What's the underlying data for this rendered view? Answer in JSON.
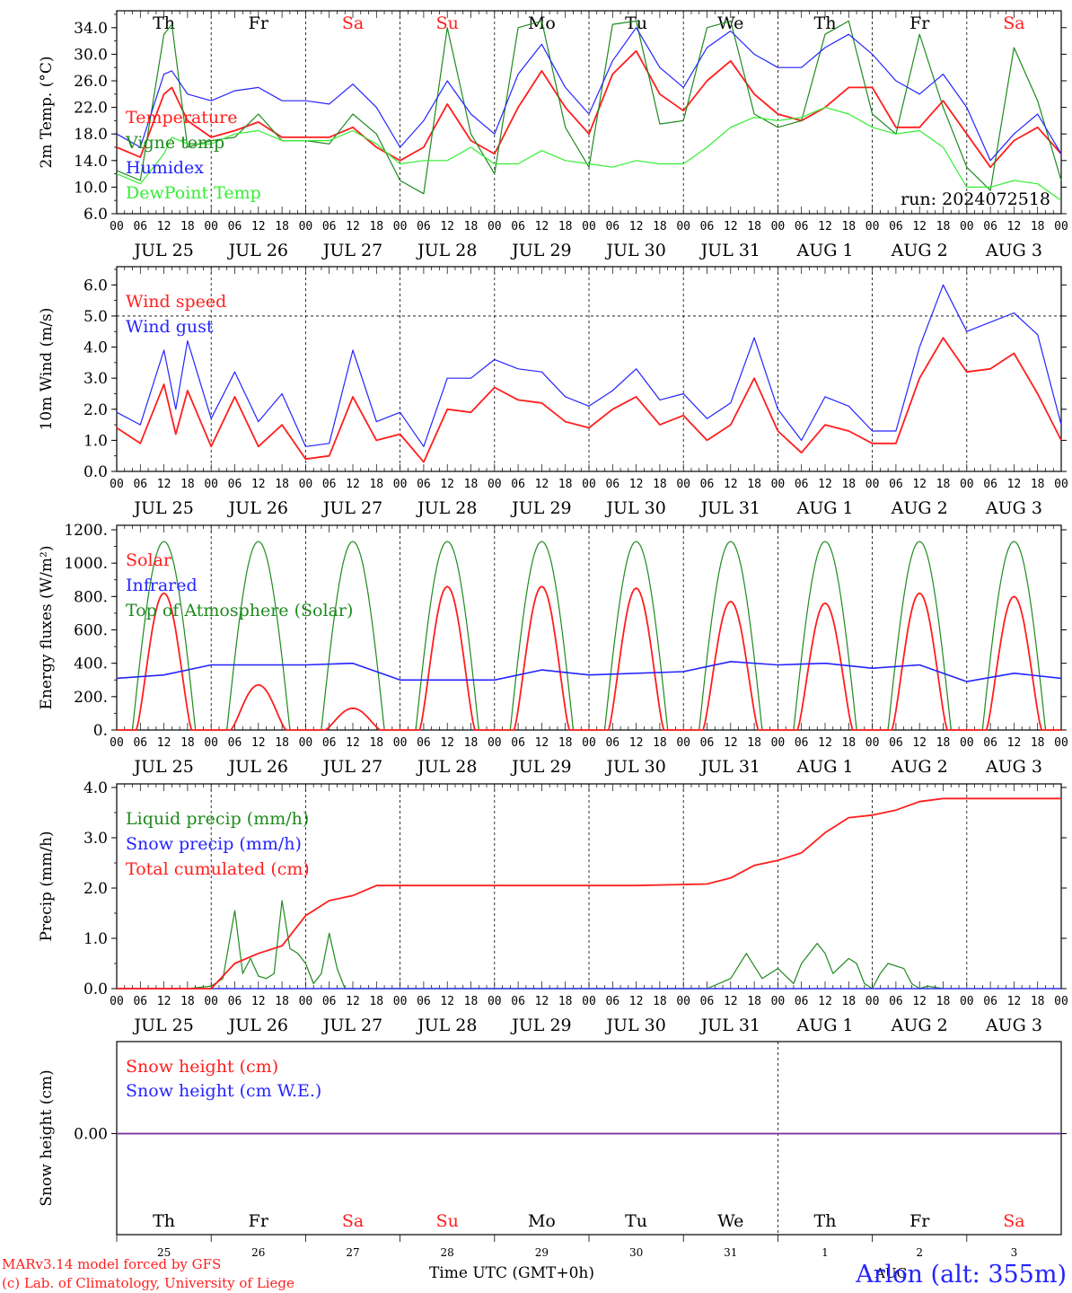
{
  "colors": {
    "red": "#ff1e1e",
    "blue": "#2424ff",
    "green": "#1f8a1f",
    "lightgreen": "#33ee33",
    "black": "#000000",
    "purple": "#7a2a9a"
  },
  "days": {
    "weekday_labels": [
      "Th",
      "Fr",
      "Sa",
      "Su",
      "Mo",
      "Tu",
      "We",
      "Th",
      "Fr",
      "Sa"
    ],
    "weekend_flags": [
      false,
      false,
      true,
      true,
      false,
      false,
      false,
      false,
      false,
      true
    ],
    "date_labels": [
      "JUL 25",
      "JUL 26",
      "JUL 27",
      "JUL 28",
      "JUL 29",
      "JUL 30",
      "JUL 31",
      "AUG  1",
      "AUG  2",
      "AUG  3"
    ],
    "hour_labels": [
      "00",
      "06",
      "12",
      "18"
    ],
    "final_hour_label": "00",
    "day_numbers": [
      "25",
      "26",
      "27",
      "28",
      "29",
      "30",
      "31",
      "1",
      "2",
      "3"
    ],
    "month_tag": "AUG"
  },
  "footer": {
    "model_line": "MARv3.14 model forced by GFS",
    "lab_line": "(c) Lab. of Climatology, University of Liege",
    "time_axis": "Time UTC (GMT+0h)",
    "station": "Arlon (alt: 355m)"
  },
  "chart_data": [
    {
      "type": "line",
      "title": "",
      "ylabel": "2m Temp. (oC)",
      "ylim": [
        6,
        36
      ],
      "yticks": [
        "6.0",
        "10.0",
        "14.0",
        "18.0",
        "22.0",
        "26.0",
        "30.0",
        "34.0"
      ],
      "run_label": "run: 2024072518",
      "x_unit": "hours since 2024-07-25 00 UTC",
      "xlim": [
        0,
        240
      ],
      "series": [
        {
          "name": "Temperature",
          "color": "red",
          "x": [
            0,
            6,
            12,
            14,
            18,
            24,
            30,
            36,
            42,
            48,
            54,
            60,
            66,
            72,
            78,
            84,
            90,
            96,
            102,
            108,
            114,
            120,
            126,
            132,
            138,
            144,
            150,
            156,
            162,
            168,
            174,
            180,
            186,
            192,
            198,
            204,
            210,
            216,
            222,
            228,
            234,
            240
          ],
          "y": [
            16,
            14.5,
            24,
            25,
            20,
            17.5,
            18.5,
            19.8,
            17.5,
            17.5,
            17.5,
            19,
            16,
            14,
            16,
            22.5,
            17,
            15,
            22,
            27.5,
            22,
            18,
            27,
            30.5,
            24,
            21.5,
            26,
            29,
            24,
            21,
            20,
            22,
            25,
            25,
            19,
            19,
            23,
            18,
            13,
            17,
            19,
            15
          ]
        },
        {
          "name": "Vigne temp",
          "color": "green",
          "x": [
            0,
            6,
            12,
            14,
            18,
            24,
            30,
            36,
            42,
            48,
            54,
            60,
            66,
            72,
            78,
            84,
            90,
            96,
            102,
            108,
            114,
            120,
            126,
            132,
            138,
            144,
            150,
            156,
            162,
            168,
            174,
            180,
            186,
            192,
            198,
            204,
            210,
            216,
            222,
            228,
            234,
            240
          ],
          "y": [
            12.5,
            11,
            33,
            34.5,
            16,
            17,
            17.5,
            21,
            17,
            17,
            16.5,
            21,
            18,
            11,
            9,
            34,
            18,
            12,
            34,
            35,
            19,
            13,
            34.5,
            35,
            19.5,
            20,
            34,
            35,
            21,
            19,
            20,
            33,
            35,
            21,
            18,
            33,
            22,
            13,
            9.5,
            31,
            23,
            11
          ]
        },
        {
          "name": "Humidex",
          "color": "blue",
          "x": [
            0,
            6,
            12,
            14,
            18,
            24,
            30,
            36,
            42,
            48,
            54,
            60,
            66,
            72,
            78,
            84,
            90,
            96,
            102,
            108,
            114,
            120,
            126,
            132,
            138,
            144,
            150,
            156,
            162,
            168,
            174,
            180,
            186,
            192,
            198,
            204,
            210,
            216,
            222,
            228,
            234,
            240
          ],
          "y": [
            18,
            16,
            27,
            27.5,
            24,
            23,
            24.5,
            25,
            23,
            23,
            22.5,
            25.5,
            22,
            16,
            20,
            26,
            21,
            18,
            27,
            31.5,
            25,
            21,
            29,
            34,
            28,
            25,
            31,
            33.5,
            30,
            28,
            28,
            31,
            33,
            30,
            26,
            24,
            27,
            22,
            14,
            18,
            21,
            15
          ]
        },
        {
          "name": "DewPoint Temp",
          "color": "lightgreen",
          "x": [
            0,
            6,
            12,
            14,
            18,
            24,
            30,
            36,
            42,
            48,
            54,
            60,
            66,
            72,
            78,
            84,
            90,
            96,
            102,
            108,
            114,
            120,
            126,
            132,
            138,
            144,
            150,
            156,
            162,
            168,
            174,
            180,
            186,
            192,
            198,
            204,
            210,
            216,
            222,
            228,
            234,
            240
          ],
          "y": [
            12,
            10.5,
            15,
            17.5,
            16.5,
            16.5,
            18,
            18.5,
            17,
            17,
            17,
            18.5,
            16.5,
            13.5,
            14,
            14,
            16,
            13.5,
            13.5,
            15.5,
            14,
            13.5,
            13,
            14,
            13.5,
            13.5,
            16,
            19,
            20.5,
            20,
            20.5,
            22,
            21,
            19,
            18,
            18.5,
            16,
            10,
            10,
            11,
            10.5,
            8
          ]
        }
      ]
    },
    {
      "type": "line",
      "title": "",
      "ylabel": "10m Wind (m/s)",
      "ylim": [
        0,
        6.5
      ],
      "yticks": [
        "0.0",
        "1.0",
        "2.0",
        "3.0",
        "4.0",
        "5.0",
        "6.0"
      ],
      "reference_line": 5.0,
      "x_unit": "hours since 2024-07-25 00 UTC",
      "xlim": [
        0,
        240
      ],
      "series": [
        {
          "name": "Wind speed",
          "color": "red",
          "x": [
            0,
            6,
            12,
            15,
            18,
            24,
            30,
            36,
            42,
            48,
            54,
            60,
            66,
            72,
            78,
            84,
            90,
            96,
            102,
            108,
            114,
            120,
            126,
            132,
            138,
            144,
            150,
            156,
            162,
            168,
            174,
            180,
            186,
            192,
            198,
            204,
            210,
            216,
            222,
            228,
            234,
            240
          ],
          "y": [
            1.4,
            0.9,
            2.8,
            1.2,
            2.6,
            0.8,
            2.4,
            0.8,
            1.5,
            0.4,
            0.5,
            2.4,
            1.0,
            1.2,
            0.3,
            2.0,
            1.9,
            2.7,
            2.3,
            2.2,
            1.6,
            1.4,
            2.0,
            2.4,
            1.5,
            1.8,
            1.0,
            1.5,
            3.0,
            1.3,
            0.6,
            1.5,
            1.3,
            0.9,
            0.9,
            3.0,
            4.3,
            3.2,
            3.3,
            3.8,
            2.5,
            1.0
          ]
        },
        {
          "name": "Wind gust",
          "color": "blue",
          "x": [
            0,
            6,
            12,
            15,
            18,
            24,
            30,
            36,
            42,
            48,
            54,
            60,
            66,
            72,
            78,
            84,
            90,
            96,
            102,
            108,
            114,
            120,
            126,
            132,
            138,
            144,
            150,
            156,
            162,
            168,
            174,
            180,
            186,
            192,
            198,
            204,
            210,
            216,
            222,
            228,
            234,
            240
          ],
          "y": [
            1.9,
            1.5,
            3.9,
            2.0,
            4.2,
            1.7,
            3.2,
            1.6,
            2.5,
            0.8,
            0.9,
            3.9,
            1.6,
            1.9,
            0.8,
            3.0,
            3.0,
            3.6,
            3.3,
            3.2,
            2.4,
            2.1,
            2.6,
            3.3,
            2.3,
            2.5,
            1.7,
            2.2,
            4.3,
            2.0,
            1.0,
            2.4,
            2.1,
            1.3,
            1.3,
            4.0,
            6.0,
            4.5,
            4.8,
            5.1,
            4.4,
            1.5
          ]
        }
      ]
    },
    {
      "type": "line",
      "title": "",
      "ylabel": "Energy fluxes (W/m2)",
      "ylim": [
        0,
        1200
      ],
      "yticks": [
        "0.",
        "200.",
        "400.",
        "600.",
        "800.",
        "1000.",
        "1200."
      ],
      "x_unit": "hours since 2024-07-25 00 UTC",
      "xlim": [
        0,
        240
      ],
      "solar_peaks": [
        820,
        270,
        130,
        860,
        860,
        850,
        770,
        760,
        820,
        800
      ],
      "toa_peak": 1130,
      "series": [
        {
          "name": "Solar",
          "color": "red"
        },
        {
          "name": "Infrared",
          "color": "blue",
          "x": [
            0,
            12,
            24,
            48,
            60,
            72,
            96,
            108,
            120,
            144,
            156,
            168,
            180,
            192,
            204,
            216,
            228,
            240
          ],
          "y": [
            310,
            330,
            390,
            390,
            400,
            300,
            300,
            360,
            330,
            350,
            410,
            390,
            400,
            370,
            390,
            290,
            340,
            310
          ]
        },
        {
          "name": "Top of Atmosphere (Solar)",
          "color": "green"
        }
      ]
    },
    {
      "type": "line",
      "title": "",
      "ylabel": "Precip (mm/h)",
      "ylim": [
        0,
        4.0
      ],
      "yticks": [
        "0.0",
        "1.0",
        "2.0",
        "3.0",
        "4.0"
      ],
      "x_unit": "hours since 2024-07-25 00 UTC",
      "xlim": [
        0,
        240
      ],
      "series": [
        {
          "name": "Liquid precip (mm/h)",
          "color": "green",
          "x": [
            0,
            18,
            24,
            27,
            30,
            32,
            34,
            36,
            38,
            40,
            42,
            44,
            46,
            48,
            50,
            52,
            54,
            56,
            58,
            60,
            62,
            64,
            66,
            68,
            72,
            150,
            156,
            160,
            164,
            168,
            172,
            174,
            178,
            180,
            182,
            186,
            188,
            190,
            192,
            194,
            196,
            200,
            202,
            204,
            206,
            210
          ],
          "y": [
            0,
            0,
            0.05,
            0.2,
            1.55,
            0.3,
            0.6,
            0.25,
            0.2,
            0.3,
            1.75,
            0.8,
            0.7,
            0.5,
            0.1,
            0.3,
            1.1,
            0.4,
            0,
            0,
            0,
            0,
            0,
            0,
            0,
            0,
            0.2,
            0.7,
            0.2,
            0.4,
            0.1,
            0.5,
            0.9,
            0.7,
            0.3,
            0.6,
            0.5,
            0.1,
            0,
            0.3,
            0.5,
            0.4,
            0.1,
            0,
            0.05,
            0
          ]
        },
        {
          "name": "Snow precip (mm/h)",
          "color": "blue",
          "x": [
            0,
            240
          ],
          "y": [
            0,
            0
          ]
        },
        {
          "name": "Total cumulated (cm)",
          "color": "red",
          "x": [
            0,
            24,
            30,
            36,
            42,
            48,
            54,
            60,
            66,
            96,
            132,
            150,
            156,
            162,
            168,
            174,
            180,
            186,
            192,
            198,
            204,
            210,
            216,
            240
          ],
          "y": [
            0,
            0,
            0.5,
            0.7,
            0.85,
            1.45,
            1.75,
            1.85,
            2.05,
            2.05,
            2.05,
            2.08,
            2.2,
            2.45,
            2.55,
            2.7,
            3.1,
            3.4,
            3.45,
            3.55,
            3.72,
            3.78,
            3.78,
            3.78
          ]
        }
      ]
    },
    {
      "type": "line",
      "title": "",
      "ylabel": "Snow height (cm)",
      "ylim": [
        -1,
        1
      ],
      "yticks": [
        "0.00"
      ],
      "x_unit": "hours since 2024-07-25 00 UTC",
      "xlim": [
        0,
        240
      ],
      "series": [
        {
          "name": "Snow height (cm)",
          "color": "red",
          "x": [
            0,
            240
          ],
          "y": [
            0,
            0
          ]
        },
        {
          "name": "Snow height (cm W.E.)",
          "color": "blue",
          "x": [
            0,
            240
          ],
          "y": [
            0,
            0
          ]
        }
      ]
    }
  ]
}
